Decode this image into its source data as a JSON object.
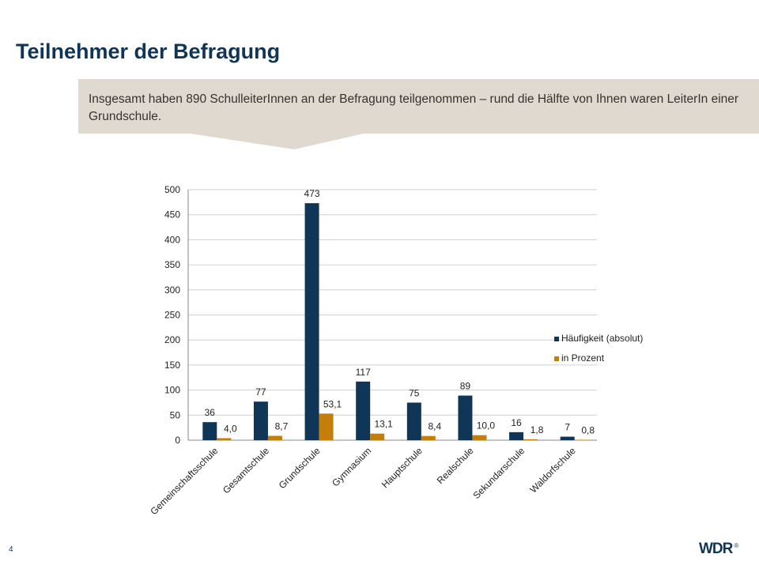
{
  "slide": {
    "title": "Teilnehmer der Befragung",
    "callout": "Insgesamt haben 890 SchulleiterInnen an der Befragung teilgenommen – rund die Hälfte von Ihnen waren LeiterIn einer Grundschule.",
    "page_number": "4",
    "logo": "WDR",
    "logo_mark": "®"
  },
  "colors": {
    "series1": "#0f3557",
    "series2": "#c47e0a",
    "callout_bg": "#dfd9cf",
    "title": "#0f3557"
  },
  "chart_data": {
    "type": "bar",
    "categories": [
      "Gemeinschaftsschule",
      "Gesamtschule",
      "Grundschule",
      "Gymnasium",
      "Hauptschule",
      "Realschule",
      "Sekundarschule",
      "Waldorfschule"
    ],
    "series": [
      {
        "name": "Häufigkeit (absolut)",
        "values": [
          36,
          77,
          473,
          117,
          75,
          89,
          16,
          7
        ],
        "labels": [
          "36",
          "77",
          "473",
          "117",
          "75",
          "89",
          "16",
          "7"
        ]
      },
      {
        "name": "in Prozent",
        "values": [
          4.0,
          8.7,
          53.1,
          13.1,
          8.4,
          10.0,
          1.8,
          0.8
        ],
        "labels": [
          "4,0",
          "8,7",
          "53,1",
          "13,1",
          "8,4",
          "10,0",
          "1,8",
          "0,8"
        ]
      }
    ],
    "ylim": [
      0,
      500
    ],
    "yticks": [
      0,
      50,
      100,
      150,
      200,
      250,
      300,
      350,
      400,
      450,
      500
    ],
    "grid": true,
    "legend_position": "right"
  }
}
